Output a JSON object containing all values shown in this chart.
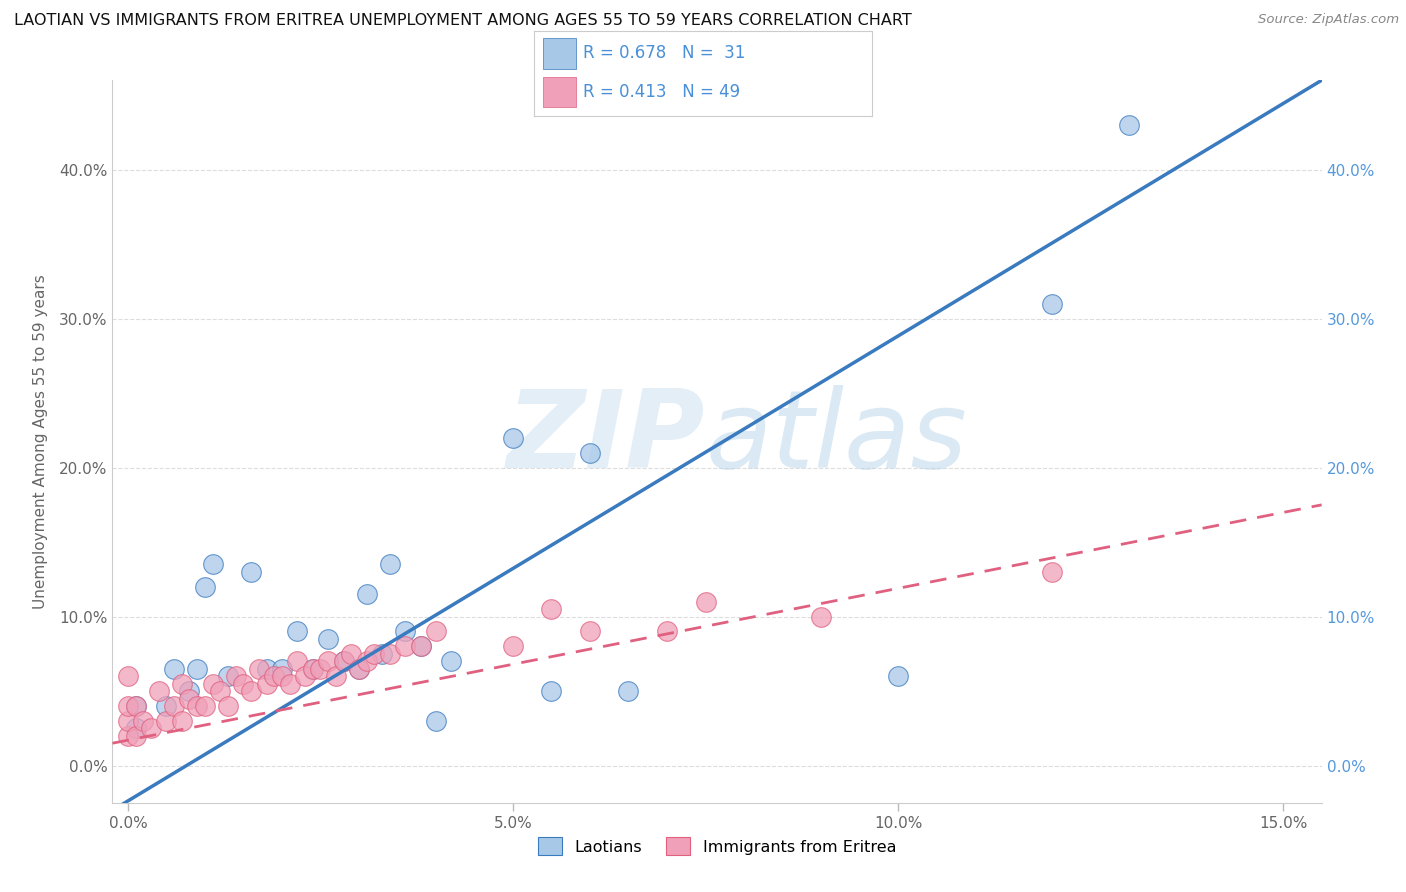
{
  "title": "LAOTIAN VS IMMIGRANTS FROM ERITREA UNEMPLOYMENT AMONG AGES 55 TO 59 YEARS CORRELATION CHART",
  "source": "Source: ZipAtlas.com",
  "ylabel": "Unemployment Among Ages 55 to 59 years",
  "xlim": [
    -0.002,
    0.155
  ],
  "ylim": [
    -0.025,
    0.46
  ],
  "xticks": [
    0.0,
    0.05,
    0.1,
    0.15
  ],
  "yticks": [
    0.0,
    0.1,
    0.2,
    0.3,
    0.4
  ],
  "xticklabels": [
    "0.0%",
    "5.0%",
    "10.0%",
    "15.0%"
  ],
  "yticklabels": [
    "0.0%",
    "10.0%",
    "20.0%",
    "30.0%",
    "40.0%"
  ],
  "watermark_zip": "ZIP",
  "watermark_atlas": "atlas",
  "color_laotian": "#a8c8e8",
  "color_eritrea": "#f0a0b8",
  "color_line_laotian": "#3a7abf",
  "color_line_eritrea": "#e06080",
  "color_text_blue": "#4a90d9",
  "color_right_axis": "#5599dd",
  "grid_color": "#dddddd",
  "grid_style": "--",
  "laotian_x": [
    0.001,
    0.001,
    0.005,
    0.006,
    0.008,
    0.009,
    0.01,
    0.011,
    0.013,
    0.016,
    0.018,
    0.02,
    0.022,
    0.024,
    0.026,
    0.028,
    0.03,
    0.031,
    0.033,
    0.034,
    0.036,
    0.038,
    0.04,
    0.042,
    0.05,
    0.055,
    0.06,
    0.065,
    0.1,
    0.12,
    0.13
  ],
  "laotian_y": [
    0.025,
    0.04,
    0.04,
    0.065,
    0.05,
    0.065,
    0.12,
    0.135,
    0.06,
    0.13,
    0.065,
    0.065,
    0.09,
    0.065,
    0.085,
    0.07,
    0.065,
    0.115,
    0.075,
    0.135,
    0.09,
    0.08,
    0.03,
    0.07,
    0.22,
    0.05,
    0.21,
    0.05,
    0.06,
    0.31,
    0.43
  ],
  "eritrea_x": [
    0.0,
    0.0,
    0.0,
    0.0,
    0.001,
    0.001,
    0.002,
    0.003,
    0.004,
    0.005,
    0.006,
    0.007,
    0.007,
    0.008,
    0.009,
    0.01,
    0.011,
    0.012,
    0.013,
    0.014,
    0.015,
    0.016,
    0.017,
    0.018,
    0.019,
    0.02,
    0.021,
    0.022,
    0.023,
    0.024,
    0.025,
    0.026,
    0.027,
    0.028,
    0.029,
    0.03,
    0.031,
    0.032,
    0.034,
    0.036,
    0.038,
    0.04,
    0.05,
    0.055,
    0.06,
    0.07,
    0.075,
    0.09,
    0.12
  ],
  "eritrea_y": [
    0.02,
    0.03,
    0.04,
    0.06,
    0.02,
    0.04,
    0.03,
    0.025,
    0.05,
    0.03,
    0.04,
    0.03,
    0.055,
    0.045,
    0.04,
    0.04,
    0.055,
    0.05,
    0.04,
    0.06,
    0.055,
    0.05,
    0.065,
    0.055,
    0.06,
    0.06,
    0.055,
    0.07,
    0.06,
    0.065,
    0.065,
    0.07,
    0.06,
    0.07,
    0.075,
    0.065,
    0.07,
    0.075,
    0.075,
    0.08,
    0.08,
    0.09,
    0.08,
    0.105,
    0.09,
    0.09,
    0.11,
    0.1,
    0.13
  ],
  "line_laotian_x0": -0.002,
  "line_laotian_y0": -0.03,
  "line_laotian_x1": 0.155,
  "line_laotian_y1": 0.46,
  "line_eritrea_x0": -0.002,
  "line_eritrea_y0": 0.015,
  "line_eritrea_x1": 0.155,
  "line_eritrea_y1": 0.175
}
